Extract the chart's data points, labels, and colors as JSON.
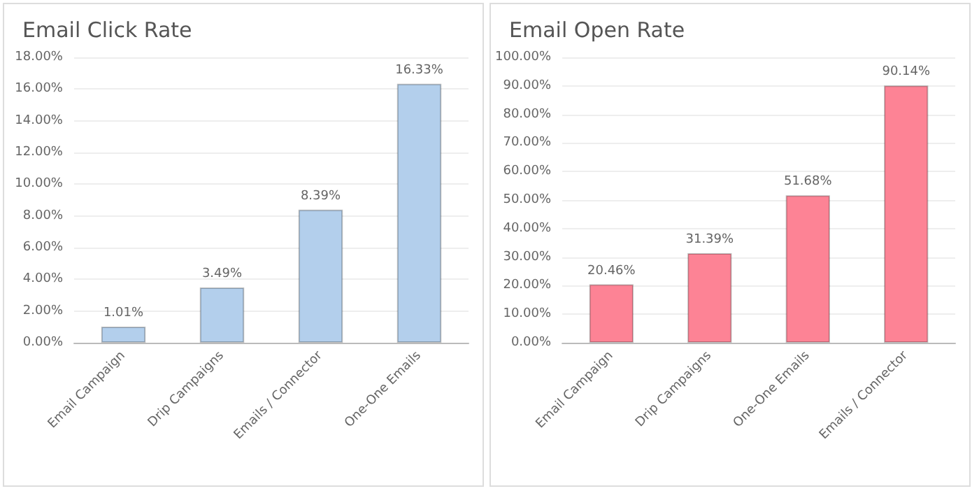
{
  "chart_data": [
    {
      "type": "bar",
      "title": "Email Click Rate",
      "categories": [
        "Email Campaign",
        "Drip Campaigns",
        "Emails / Connector",
        "One-One Emails"
      ],
      "values": [
        1.01,
        3.49,
        8.39,
        16.33
      ],
      "color": "#b3cfec",
      "value_labels": [
        "1.01%",
        "3.49%",
        "8.39%",
        "16.33%"
      ],
      "ylim": [
        0,
        18
      ],
      "yticks": [
        {
          "value": 0,
          "label": "0.00%"
        },
        {
          "value": 2,
          "label": "2.00%"
        },
        {
          "value": 4,
          "label": "4.00%"
        },
        {
          "value": 6,
          "label": "6.00%"
        },
        {
          "value": 8,
          "label": "8.00%"
        },
        {
          "value": 10,
          "label": "10.00%"
        },
        {
          "value": 12,
          "label": "12.00%"
        },
        {
          "value": 14,
          "label": "14.00%"
        },
        {
          "value": 16,
          "label": "16.00%"
        },
        {
          "value": 18,
          "label": "18.00%"
        }
      ],
      "grid": "y"
    },
    {
      "type": "bar",
      "title": "Email Open Rate",
      "categories": [
        "Email Campaign",
        "Drip Campaigns",
        "One-One Emails",
        "Emails / Connector"
      ],
      "values": [
        20.46,
        31.39,
        51.68,
        90.14
      ],
      "color": "#fd8395",
      "value_labels": [
        "20.46%",
        "31.39%",
        "51.68%",
        "90.14%"
      ],
      "ylim": [
        0,
        100
      ],
      "yticks": [
        {
          "value": 0,
          "label": "0.00%"
        },
        {
          "value": 10,
          "label": "10.00%"
        },
        {
          "value": 20,
          "label": "20.00%"
        },
        {
          "value": 30,
          "label": "30.00%"
        },
        {
          "value": 40,
          "label": "40.00%"
        },
        {
          "value": 50,
          "label": "50.00%"
        },
        {
          "value": 60,
          "label": "60.00%"
        },
        {
          "value": 70,
          "label": "70.00%"
        },
        {
          "value": 80,
          "label": "80.00%"
        },
        {
          "value": 90,
          "label": "90.00%"
        },
        {
          "value": 100,
          "label": "100.00%"
        }
      ],
      "grid": "y"
    }
  ]
}
